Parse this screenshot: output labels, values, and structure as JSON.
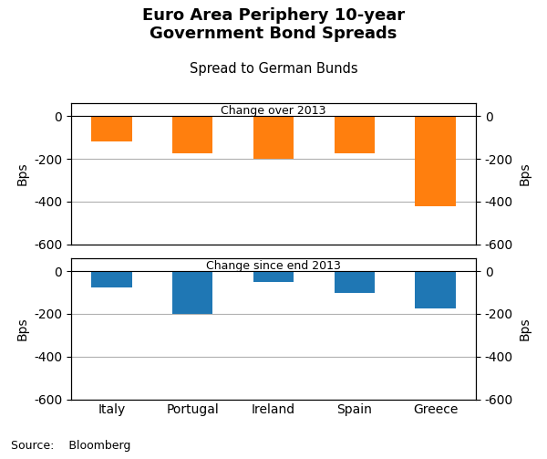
{
  "title": "Euro Area Periphery 10-year\nGovernment Bond Spreads",
  "subtitle": "Spread to German Bunds",
  "source": "Source:    Bloomberg",
  "chart_data": [
    {
      "type": "bar",
      "title": "Change over 2013",
      "categories": [
        "Italy",
        "Portugal",
        "Ireland",
        "Spain",
        "Greece"
      ],
      "values": [
        -120,
        -175,
        -200,
        -175,
        -420
      ],
      "color": "#ff7f0e",
      "ylim": [
        -600,
        60
      ],
      "yticks": [
        0,
        -200,
        -400,
        -600
      ],
      "y2lim": [
        -600,
        60
      ],
      "y2ticks": [
        0,
        -200,
        -400,
        -600
      ],
      "ylabel": "Bps",
      "y2label": "Bps",
      "grid": true,
      "tick_labels": "y"
    },
    {
      "type": "bar",
      "title": "Change since end 2013",
      "categories": [
        "Italy",
        "Portugal",
        "Ireland",
        "Spain",
        "Greece"
      ],
      "values": [
        -75,
        -200,
        -50,
        -100,
        -175
      ],
      "color": "#1f77b4",
      "ylim": [
        -600,
        60
      ],
      "yticks": [
        0,
        -200,
        -400,
        -600
      ],
      "y2lim": [
        -600,
        60
      ],
      "y2ticks": [
        0,
        -200,
        -400,
        -600
      ],
      "ylabel": "Bps",
      "y2label": "Bps",
      "grid": true
    }
  ]
}
